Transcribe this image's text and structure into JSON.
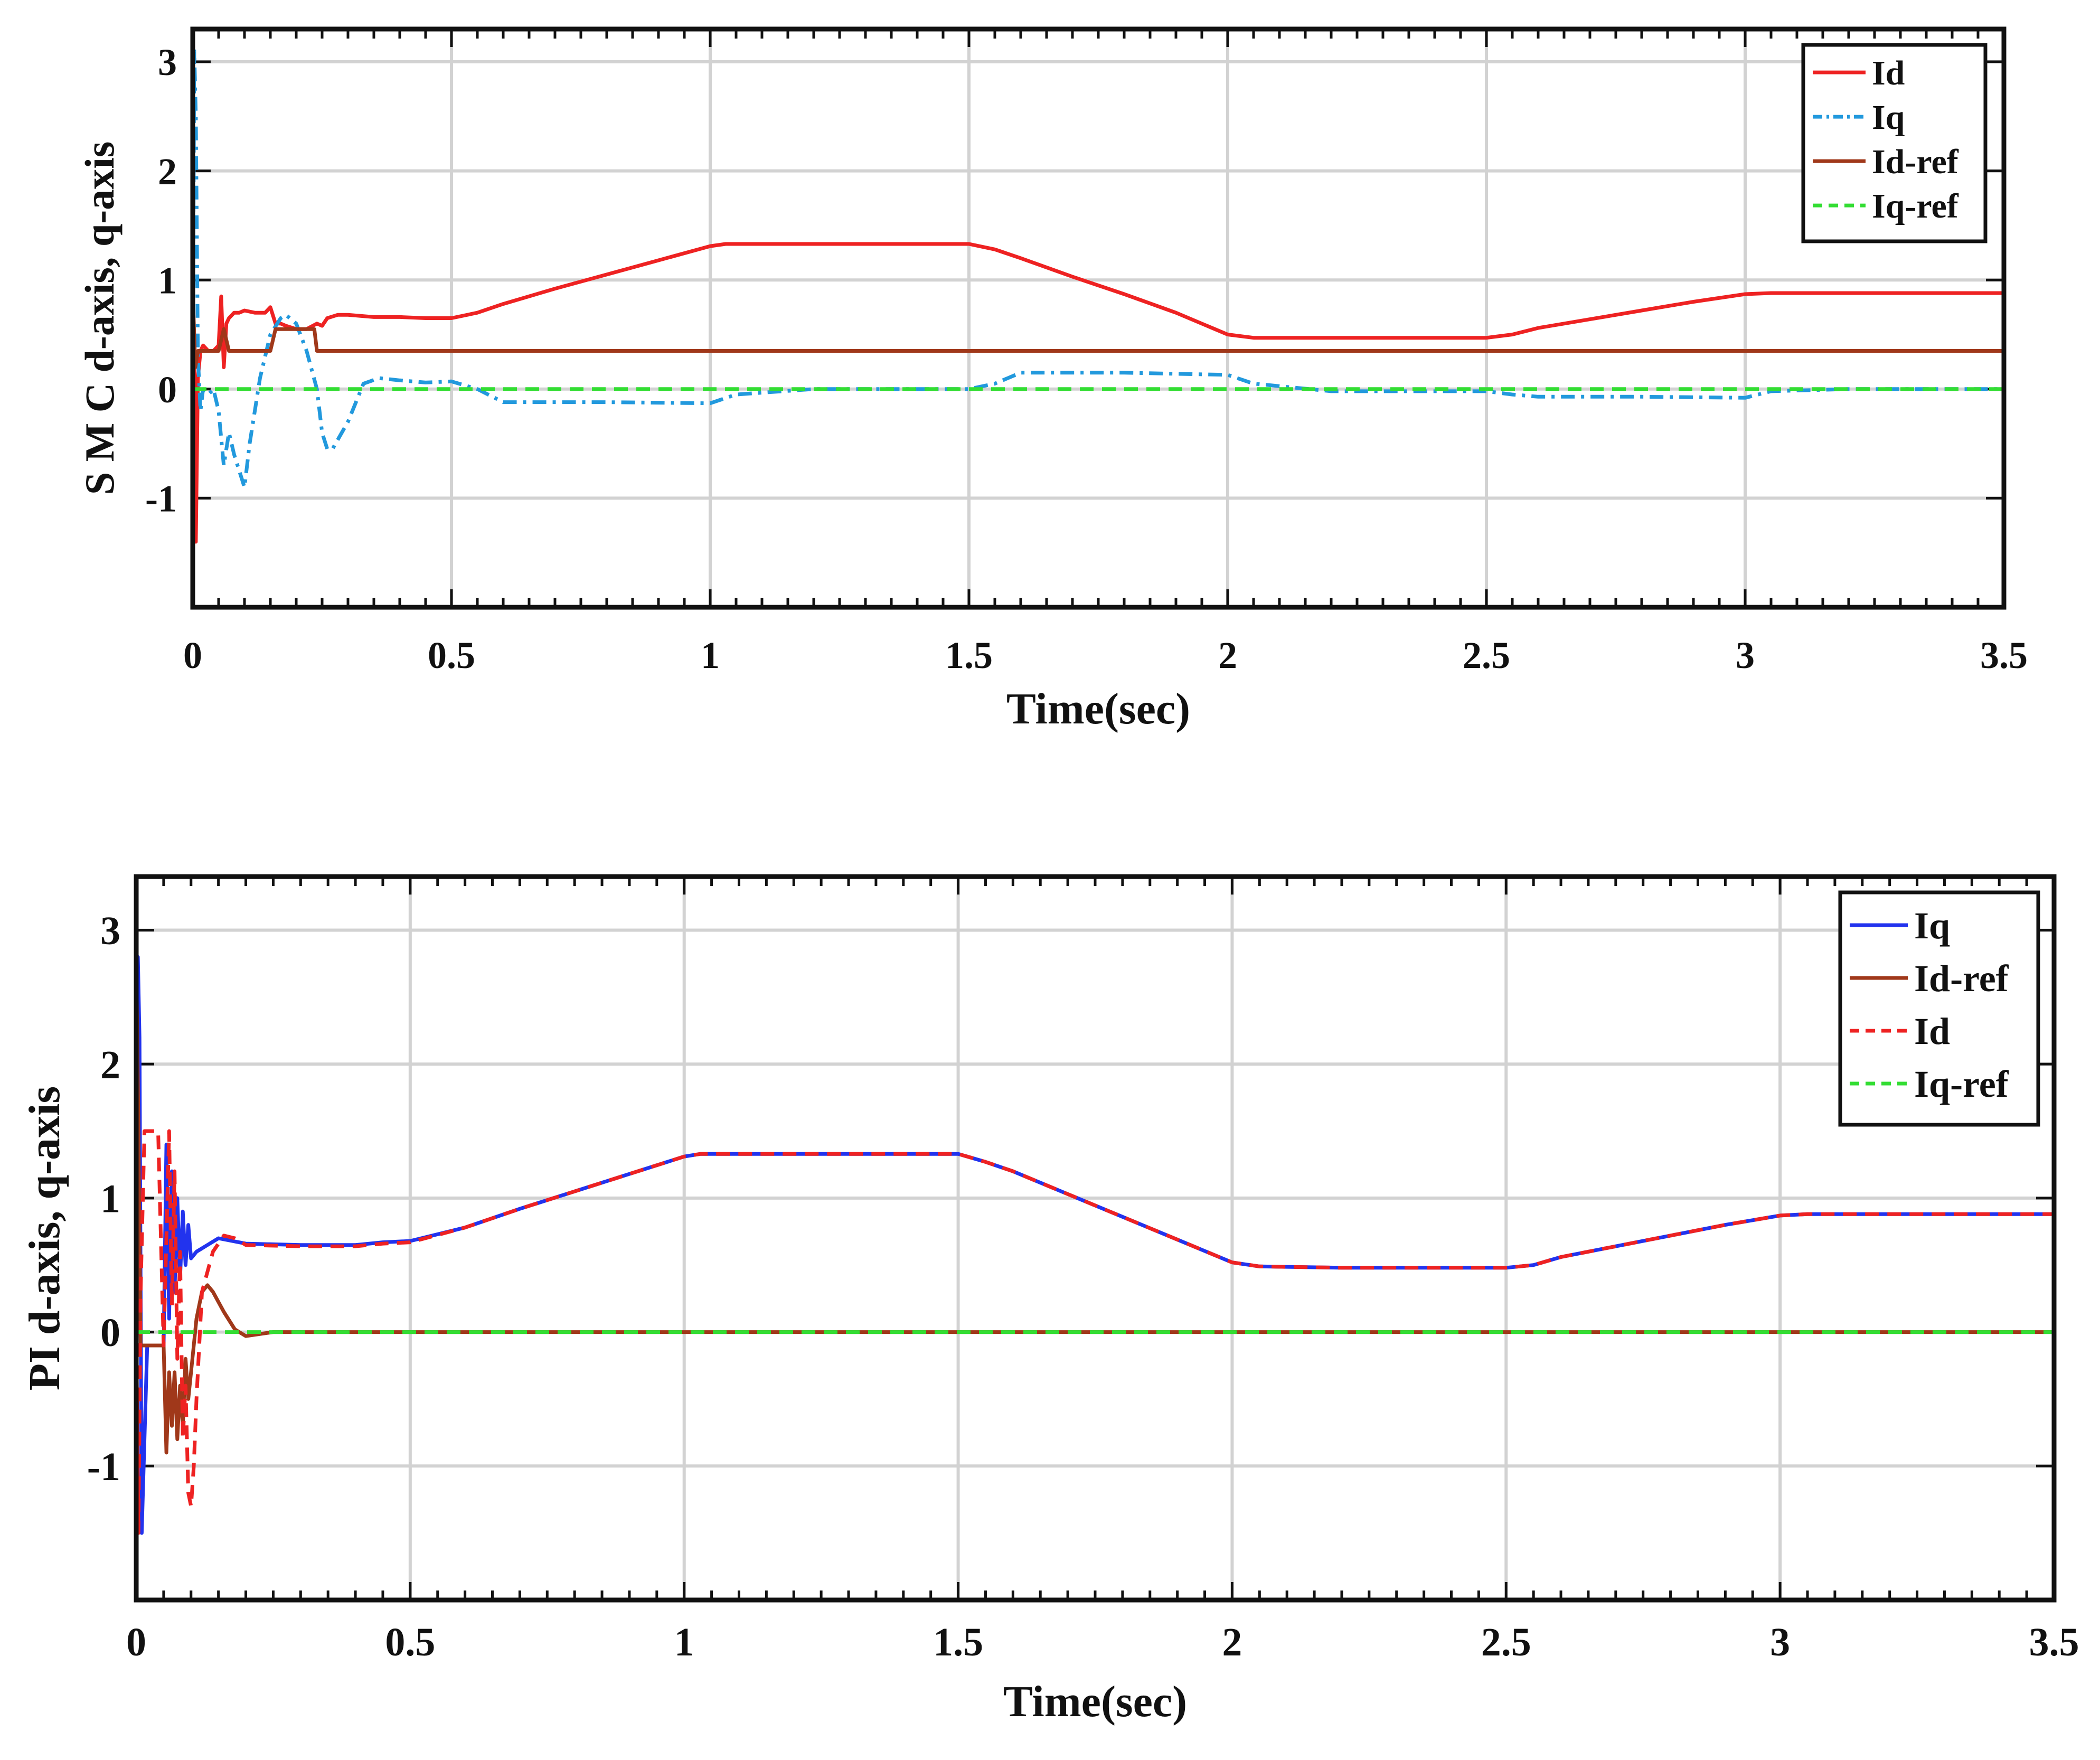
{
  "chart_data": [
    {
      "type": "line",
      "ylabel": "S M C d-axis, q-axis",
      "xlabel": "Time(sec)",
      "xlim": [
        0,
        3.5
      ],
      "ylim": [
        -2,
        3.3
      ],
      "xticks": [
        0,
        0.5,
        1,
        1.5,
        2,
        2.5,
        3,
        3.5
      ],
      "xtick_labels": [
        "0",
        "0.5",
        "1",
        "1.5",
        "2",
        "2.5",
        "3",
        "3.5"
      ],
      "yticks": [
        -1,
        0,
        1,
        2,
        3
      ],
      "ytick_labels": [
        "-1",
        "0",
        "1",
        "2",
        "3"
      ],
      "grid": true,
      "legend_position": "top-right",
      "series": [
        {
          "name": "Id",
          "color": "#ee2222",
          "dash": "solid",
          "x": [
            0,
            0.003,
            0.006,
            0.01,
            0.015,
            0.02,
            0.03,
            0.04,
            0.05,
            0.055,
            0.06,
            0.065,
            0.07,
            0.08,
            0.09,
            0.1,
            0.12,
            0.14,
            0.15,
            0.16,
            0.17,
            0.18,
            0.2,
            0.22,
            0.24,
            0.25,
            0.26,
            0.28,
            0.3,
            0.35,
            0.4,
            0.45,
            0.5,
            0.55,
            0.6,
            0.7,
            0.8,
            0.9,
            1.0,
            1.03,
            1.2,
            1.4,
            1.5,
            1.55,
            1.6,
            1.7,
            1.8,
            1.9,
            2.0,
            2.05,
            2.2,
            2.4,
            2.5,
            2.55,
            2.6,
            2.7,
            2.8,
            2.9,
            3.0,
            3.05,
            3.2,
            3.4,
            3.5
          ],
          "y": [
            0,
            0.3,
            -1.4,
            0.1,
            0.35,
            0.4,
            0.35,
            0.35,
            0.4,
            0.85,
            0.2,
            0.6,
            0.65,
            0.7,
            0.7,
            0.72,
            0.7,
            0.7,
            0.75,
            0.6,
            0.6,
            0.58,
            0.55,
            0.55,
            0.6,
            0.58,
            0.65,
            0.68,
            0.68,
            0.66,
            0.66,
            0.65,
            0.65,
            0.7,
            0.78,
            0.92,
            1.05,
            1.18,
            1.31,
            1.33,
            1.33,
            1.33,
            1.33,
            1.28,
            1.2,
            1.03,
            0.87,
            0.7,
            0.5,
            0.47,
            0.47,
            0.47,
            0.47,
            0.5,
            0.56,
            0.64,
            0.72,
            0.8,
            0.87,
            0.88,
            0.88,
            0.88,
            0.88
          ]
        },
        {
          "name": "Iq",
          "color": "#2299dd",
          "dash": "dash-dot",
          "x": [
            0,
            0.003,
            0.006,
            0.01,
            0.015,
            0.02,
            0.03,
            0.04,
            0.05,
            0.06,
            0.07,
            0.08,
            0.1,
            0.11,
            0.13,
            0.15,
            0.17,
            0.18,
            0.2,
            0.22,
            0.24,
            0.25,
            0.26,
            0.27,
            0.3,
            0.33,
            0.36,
            0.4,
            0.45,
            0.5,
            0.55,
            0.6,
            0.8,
            1.0,
            1.05,
            1.2,
            1.5,
            1.55,
            1.6,
            1.8,
            2.0,
            2.05,
            2.2,
            2.5,
            2.55,
            2.6,
            2.8,
            3.0,
            3.05,
            3.2,
            3.5
          ],
          "y": [
            0,
            3.1,
            2.5,
            0.3,
            -0.2,
            0,
            -0.05,
            0,
            -0.2,
            -0.7,
            -0.4,
            -0.6,
            -0.9,
            -0.5,
            0.1,
            0.5,
            0.65,
            0.68,
            0.6,
            0.35,
            0,
            -0.4,
            -0.55,
            -0.55,
            -0.3,
            0.05,
            0.1,
            0.08,
            0.06,
            0.07,
            0,
            -0.12,
            -0.12,
            -0.13,
            -0.05,
            0,
            0,
            0.05,
            0.15,
            0.15,
            0.13,
            0.05,
            -0.02,
            -0.02,
            -0.05,
            -0.07,
            -0.07,
            -0.08,
            -0.02,
            0,
            0
          ]
        },
        {
          "name": "Id-ref",
          "color": "#a0381a",
          "dash": "solid",
          "x": [
            0,
            0.005,
            0.01,
            0.02,
            0.05,
            0.06,
            0.07,
            0.08,
            0.15,
            0.16,
            0.235,
            0.24,
            3.5
          ],
          "y": [
            0.9,
            0.2,
            0.35,
            0.35,
            0.35,
            0.55,
            0.35,
            0.35,
            0.35,
            0.55,
            0.55,
            0.35,
            0.35
          ]
        },
        {
          "name": "Iq-ref",
          "color": "#33dd33",
          "dash": "dashed",
          "x": [
            0,
            3.5
          ],
          "y": [
            0,
            0
          ]
        }
      ]
    },
    {
      "type": "line",
      "ylabel": "PI  d-axis, q-axis",
      "xlabel": "Time(sec)",
      "xlim": [
        0,
        3.5
      ],
      "ylim": [
        -2,
        3.4
      ],
      "xticks": [
        0,
        0.5,
        1,
        1.5,
        2,
        2.5,
        3,
        3.5
      ],
      "xtick_labels": [
        "0",
        "0.5",
        "1",
        "1.5",
        "2",
        "2.5",
        "3",
        "3.5"
      ],
      "yticks": [
        -1,
        0,
        1,
        2,
        3
      ],
      "ytick_labels": [
        "-1",
        "0",
        "1",
        "2",
        "3"
      ],
      "grid": true,
      "legend_position": "top-right",
      "series": [
        {
          "name": "Iq",
          "color": "#2233ee",
          "dash": "solid",
          "x": [
            0,
            0.003,
            0.006,
            0.01,
            0.02,
            0.03,
            0.04,
            0.05,
            0.055,
            0.06,
            0.065,
            0.07,
            0.075,
            0.08,
            0.085,
            0.09,
            0.095,
            0.1,
            0.11,
            0.13,
            0.15,
            0.2,
            0.3,
            0.4,
            0.45,
            0.5,
            0.6,
            0.7,
            0.8,
            0.9,
            1.0,
            1.03,
            1.2,
            1.4,
            1.5,
            1.55,
            1.6,
            1.7,
            1.8,
            1.9,
            2.0,
            2.05,
            2.2,
            2.4,
            2.5,
            2.55,
            2.6,
            2.7,
            2.8,
            2.9,
            3.0,
            3.05,
            3.2,
            3.4,
            3.5
          ],
          "y": [
            0,
            2.8,
            2.2,
            -1.5,
            -0.1,
            -0.1,
            -0.1,
            -0.1,
            1.4,
            0.1,
            1.2,
            0.3,
            1.0,
            0.4,
            0.9,
            0.5,
            0.8,
            0.55,
            0.6,
            0.65,
            0.7,
            0.66,
            0.65,
            0.65,
            0.67,
            0.68,
            0.78,
            0.92,
            1.05,
            1.18,
            1.31,
            1.33,
            1.33,
            1.33,
            1.33,
            1.27,
            1.2,
            1.03,
            0.86,
            0.69,
            0.52,
            0.49,
            0.48,
            0.48,
            0.48,
            0.5,
            0.56,
            0.64,
            0.72,
            0.8,
            0.87,
            0.88,
            0.88,
            0.88,
            0.88
          ]
        },
        {
          "name": "Id-ref",
          "color": "#a0381a",
          "dash": "solid",
          "x": [
            0,
            0.004,
            0.008,
            0.02,
            0.05,
            0.055,
            0.06,
            0.065,
            0.07,
            0.075,
            0.08,
            0.085,
            0.09,
            0.095,
            0.1,
            0.11,
            0.12,
            0.13,
            0.14,
            0.16,
            0.18,
            0.2,
            0.25,
            3.5
          ],
          "y": [
            2.8,
            1.5,
            -0.1,
            -0.1,
            -0.1,
            -0.9,
            -0.3,
            -0.7,
            -0.3,
            -0.8,
            -0.4,
            -0.7,
            -0.2,
            -0.5,
            -0.3,
            0.1,
            0.3,
            0.35,
            0.3,
            0.15,
            0.02,
            -0.03,
            0,
            0
          ]
        },
        {
          "name": "Id",
          "color": "#ee2222",
          "dash": "dashed",
          "x": [
            0,
            0.004,
            0.008,
            0.015,
            0.02,
            0.03,
            0.04,
            0.05,
            0.06,
            0.065,
            0.07,
            0.075,
            0.08,
            0.085,
            0.09,
            0.095,
            0.1,
            0.105,
            0.11,
            0.12,
            0.14,
            0.16,
            0.18,
            0.2,
            0.3,
            0.4,
            0.45,
            0.5,
            0.6,
            0.7,
            0.8,
            0.9,
            1.0,
            1.03,
            1.2,
            1.4,
            1.5,
            1.55,
            1.6,
            1.7,
            1.8,
            1.9,
            2.0,
            2.05,
            2.2,
            2.4,
            2.5,
            2.55,
            2.6,
            2.7,
            2.8,
            2.9,
            3.0,
            3.05,
            3.2,
            3.4,
            3.5
          ],
          "y": [
            0,
            -1.5,
            0.3,
            1.5,
            1.5,
            1.5,
            1.5,
            -0.1,
            1.5,
            0.2,
            1.2,
            -0.2,
            0.6,
            -0.8,
            -0.4,
            -1.2,
            -1.3,
            -1.0,
            -0.5,
            0.3,
            0.6,
            0.72,
            0.7,
            0.65,
            0.64,
            0.64,
            0.66,
            0.67,
            0.78,
            0.92,
            1.05,
            1.18,
            1.31,
            1.33,
            1.33,
            1.33,
            1.33,
            1.27,
            1.2,
            1.03,
            0.86,
            0.69,
            0.52,
            0.49,
            0.48,
            0.48,
            0.48,
            0.5,
            0.56,
            0.64,
            0.72,
            0.8,
            0.87,
            0.88,
            0.88,
            0.88,
            0.88
          ]
        },
        {
          "name": "Iq-ref",
          "color": "#33dd33",
          "dash": "dashed",
          "x": [
            0,
            3.5
          ],
          "y": [
            0,
            0
          ]
        }
      ]
    }
  ]
}
